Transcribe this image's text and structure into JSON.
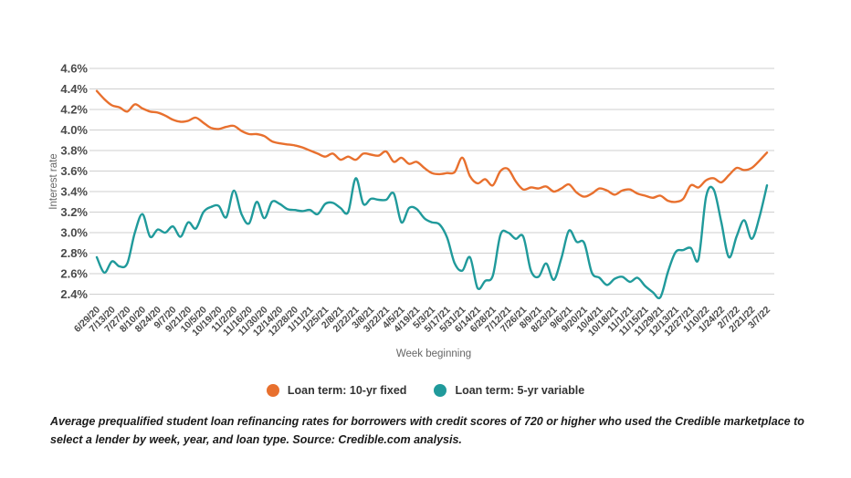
{
  "chart": {
    "y_axis_title": "Interest rate",
    "x_axis_title": "Week beginning",
    "legend": [
      {
        "label": "Loan term: 10-yr fixed",
        "color": "#E8702E"
      },
      {
        "label": "Loan term: 5-yr variable",
        "color": "#209A9B"
      }
    ],
    "caption": "Average prequalified student loan refinancing rates for borrowers with credit scores of 720 or higher who used the Credible marketplace to select a lender by week, year, and loan type. Source: Credible.com analysis."
  },
  "chart_data": {
    "type": "line",
    "title": "",
    "xlabel": "Week beginning",
    "ylabel": "Interest rate",
    "ylim": [
      2.4,
      4.6
    ],
    "grid": true,
    "legend_position": "bottom",
    "y_ticks": [
      "4.6%",
      "4.4%",
      "4.2%",
      "4.0%",
      "3.8%",
      "3.6%",
      "3.4%",
      "3.2%",
      "3.0%",
      "2.8%",
      "2.6%",
      "2.4%"
    ],
    "x_tick_labels": [
      "6/29/20",
      "7/13/20",
      "7/27/20",
      "8/10/20",
      "8/24/20",
      "9/7/20",
      "9/21/20",
      "10/5/20",
      "10/19/20",
      "11/2/20",
      "11/16/20",
      "11/30/20",
      "12/14/20",
      "12/28/20",
      "1/11/21",
      "1/25/21",
      "2/8/21",
      "2/22/21",
      "3/8/21",
      "3/22/21",
      "4/5/21",
      "4/19/21",
      "5/3/21",
      "5/17/21",
      "5/31/21",
      "6/14/21",
      "6/28/21",
      "7/12/21",
      "7/26/21",
      "8/9/21",
      "8/23/21",
      "9/6/21",
      "9/20/21",
      "10/4/21",
      "10/18/21",
      "11/1/21",
      "11/15/21",
      "11/29/21",
      "12/13/21",
      "12/27/21",
      "1/10/22",
      "1/24/22",
      "2/7/22",
      "2/21/22",
      "3/7/22"
    ],
    "points_per_label": 2,
    "series": [
      {
        "name": "Loan term: 10-yr fixed",
        "color": "#E8702E",
        "values": [
          4.38,
          4.3,
          4.24,
          4.22,
          4.18,
          4.25,
          4.21,
          4.18,
          4.17,
          4.14,
          4.1,
          4.08,
          4.09,
          4.12,
          4.07,
          4.02,
          4.01,
          4.03,
          4.04,
          3.99,
          3.96,
          3.96,
          3.94,
          3.89,
          3.87,
          3.86,
          3.85,
          3.83,
          3.8,
          3.77,
          3.74,
          3.77,
          3.71,
          3.74,
          3.71,
          3.77,
          3.76,
          3.75,
          3.79,
          3.69,
          3.73,
          3.67,
          3.69,
          3.63,
          3.58,
          3.57,
          3.58,
          3.59,
          3.73,
          3.55,
          3.48,
          3.52,
          3.46,
          3.6,
          3.62,
          3.5,
          3.42,
          3.44,
          3.43,
          3.45,
          3.4,
          3.43,
          3.47,
          3.39,
          3.35,
          3.38,
          3.43,
          3.41,
          3.37,
          3.41,
          3.42,
          3.38,
          3.36,
          3.34,
          3.36,
          3.31,
          3.3,
          3.33,
          3.46,
          3.44,
          3.51,
          3.53,
          3.49,
          3.56,
          3.63,
          3.61,
          3.63,
          3.7,
          3.78
        ]
      },
      {
        "name": "Loan term: 5-yr variable",
        "color": "#209A9B",
        "values": [
          2.76,
          2.61,
          2.72,
          2.67,
          2.7,
          3.0,
          3.18,
          2.96,
          3.03,
          3.0,
          3.06,
          2.96,
          3.1,
          3.04,
          3.2,
          3.25,
          3.26,
          3.15,
          3.41,
          3.18,
          3.09,
          3.3,
          3.14,
          3.3,
          3.28,
          3.23,
          3.22,
          3.21,
          3.22,
          3.18,
          3.28,
          3.29,
          3.24,
          3.2,
          3.53,
          3.28,
          3.33,
          3.32,
          3.32,
          3.38,
          3.1,
          3.24,
          3.23,
          3.14,
          3.1,
          3.08,
          2.95,
          2.7,
          2.63,
          2.76,
          2.46,
          2.53,
          2.58,
          2.98,
          3.0,
          2.94,
          2.96,
          2.63,
          2.57,
          2.7,
          2.54,
          2.75,
          3.02,
          2.91,
          2.9,
          2.61,
          2.56,
          2.49,
          2.55,
          2.57,
          2.52,
          2.56,
          2.48,
          2.42,
          2.37,
          2.62,
          2.81,
          2.83,
          2.85,
          2.74,
          3.35,
          3.42,
          3.1,
          2.76,
          2.96,
          3.12,
          2.94,
          3.15,
          3.46
        ]
      }
    ]
  }
}
